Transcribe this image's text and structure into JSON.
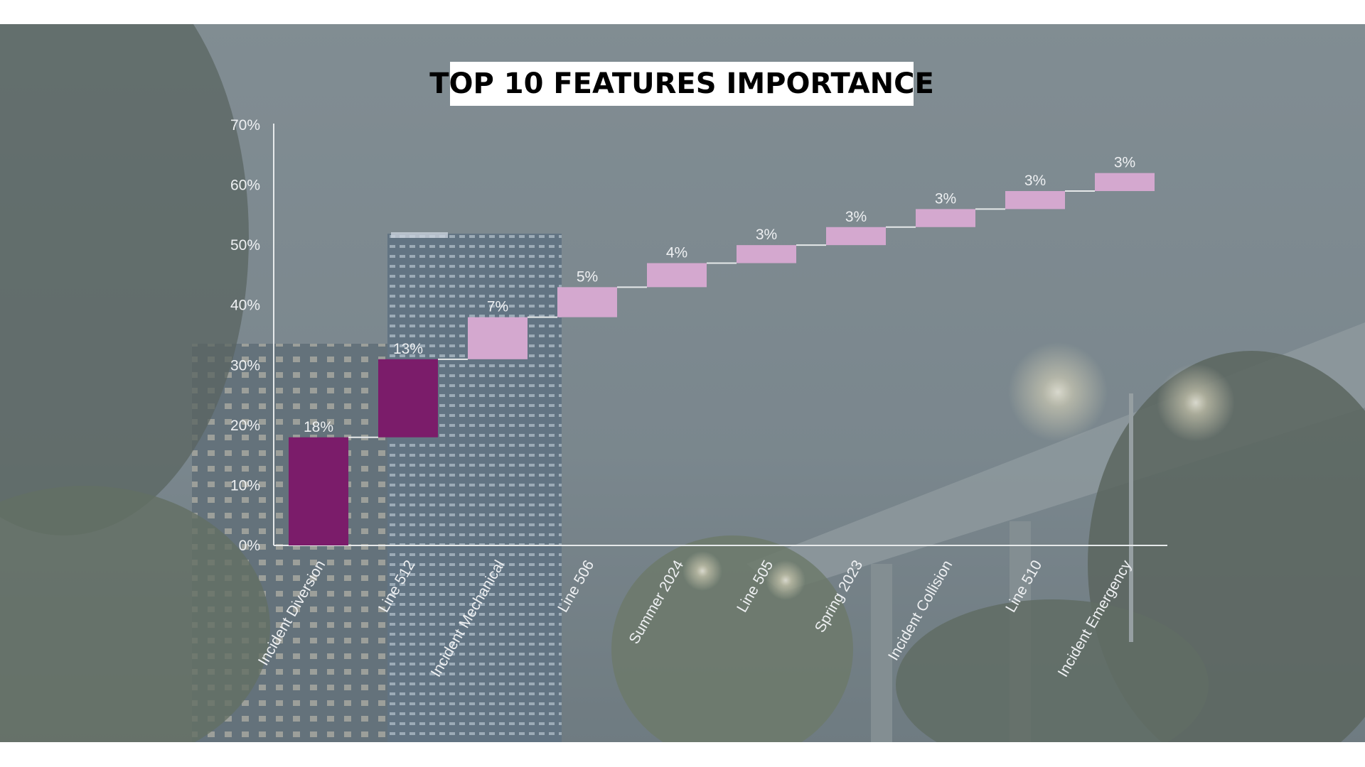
{
  "slide": {
    "title": "TOP 10 FEATURES IMPORTANCE"
  },
  "background": {
    "description_icon": "night-city-skyline-photo",
    "sky_color": "#6f7f86",
    "overlay_color": "#8e999d"
  },
  "chart_data": {
    "type": "waterfall",
    "title": "TOP 10 FEATURES IMPORTANCE",
    "xlabel": "",
    "ylabel": "",
    "ylim": [
      0,
      70
    ],
    "ytick_values": [
      0,
      10,
      20,
      30,
      40,
      50,
      60,
      70
    ],
    "ytick_labels": [
      "0%",
      "10%",
      "20%",
      "30%",
      "40%",
      "50%",
      "60%",
      "70%"
    ],
    "categories": [
      "Incident Diversion",
      "Line 512",
      "Incident Mechanical",
      "Line 506",
      "Summer 2024",
      "Line 505",
      "Spring 2023",
      "Incident Collision",
      "Line 510",
      "Incident Emergency"
    ],
    "values": [
      18,
      13,
      7,
      5,
      4,
      3,
      3,
      3,
      3,
      3
    ],
    "data_labels": [
      "18%",
      "13%",
      "7%",
      "5%",
      "4%",
      "3%",
      "3%",
      "3%",
      "3%",
      "3%"
    ],
    "colors": {
      "highlight": "#7b1c6a",
      "regular": "#d4a8cf",
      "axis": "#e6e9ea",
      "connector": "#e6e9ea"
    },
    "highlighted_count": 2,
    "grid": false,
    "legend": "none"
  }
}
